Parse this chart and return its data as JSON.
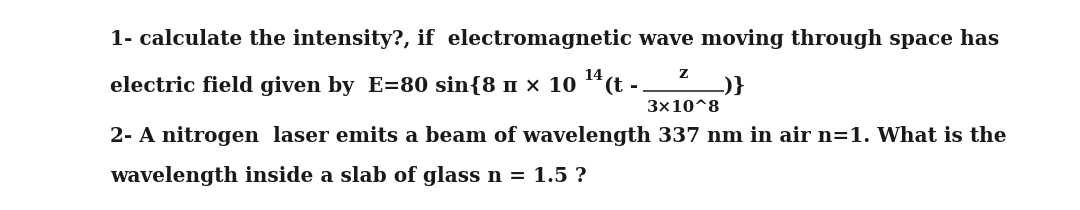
{
  "bg_color": "#ffffff",
  "text_color": "#1a1a1a",
  "line1": "1- calculate the intensity?, if  electromagnetic wave moving through space has",
  "line2_pre": "electric field given by  E=80 sin{8 π × 10 ",
  "line2_sup": "14",
  "line2_mid": "(t - ",
  "line2_frac_num": "z",
  "line2_frac_den": "3×10^8",
  "line2_end": ")}",
  "line3": "2- A nitrogen  laser emits a beam of wavelength 337 nm in air n=1. What is the",
  "line4": "wavelength inside a slab of glass n = 1.5 ?",
  "fontsize": 14.5,
  "fontfamily": "DejaVu Serif",
  "fig_width": 10.8,
  "fig_height": 2.1,
  "dpi": 100
}
